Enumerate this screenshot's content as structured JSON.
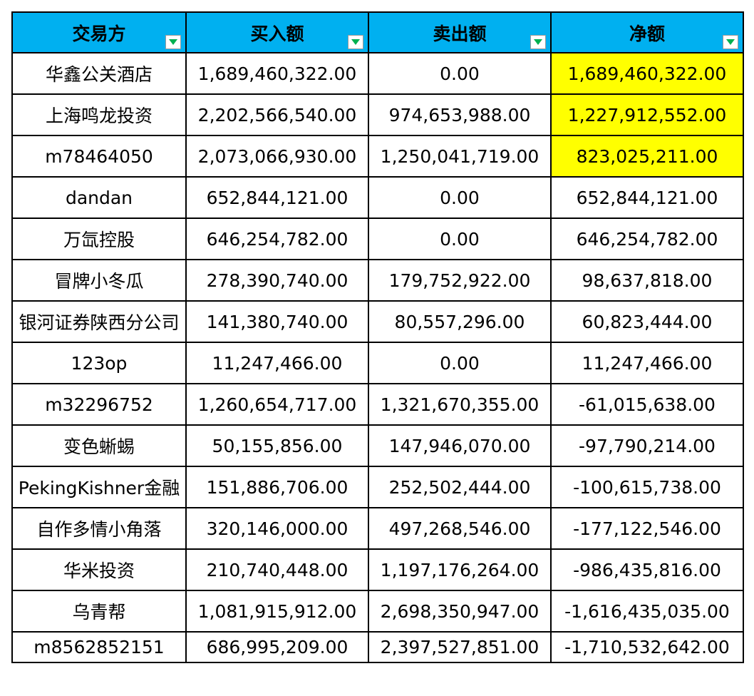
{
  "header": [
    "交易方",
    "买入额",
    "卖出额",
    "净额"
  ],
  "rows": [
    [
      "华鑫公关酒店",
      "1,689,460,322.00",
      "0.00",
      "1,689,460,322.00"
    ],
    [
      "上海鸣龙投资",
      "2,202,566,540.00",
      "974,653,988.00",
      "1,227,912,552.00"
    ],
    [
      "m78464050",
      "2,073,066,930.00",
      "1,250,041,719.00",
      "823,025,211.00"
    ],
    [
      "dandan",
      "652,844,121.00",
      "0.00",
      "652,844,121.00"
    ],
    [
      "万氙控股",
      "646,254,782.00",
      "0.00",
      "646,254,782.00"
    ],
    [
      "冒牌小冬瓜",
      "278,390,740.00",
      "179,752,922.00",
      "98,637,818.00"
    ],
    [
      "银河证券陕西分公司",
      "141,380,740.00",
      "80,557,296.00",
      "60,823,444.00"
    ],
    [
      "123op",
      "11,247,466.00",
      "0.00",
      "11,247,466.00"
    ],
    [
      "m32296752",
      "1,260,654,717.00",
      "1,321,670,355.00",
      "-61,015,638.00"
    ],
    [
      "变色蜥蜴",
      "50,155,856.00",
      "147,946,070.00",
      "-97,790,214.00"
    ],
    [
      "PekingKishner金融",
      "151,886,706.00",
      "252,502,444.00",
      "-100,615,738.00"
    ],
    [
      "自作多情小角落",
      "320,146,000.00",
      "497,268,546.00",
      "-177,122,546.00"
    ],
    [
      "华米投资",
      "210,740,448.00",
      "1,197,176,264.00",
      "-986,435,816.00"
    ],
    [
      "乌青帮",
      "1,081,915,912.00",
      "2,698,350,947.00",
      "-1,616,435,035.00"
    ],
    [
      "m8562852151",
      "686,995,209.00",
      "2,397,527,851.00",
      "-1,710,532,642.00"
    ]
  ],
  "colors": {
    "header_bg": "#00B0F0",
    "highlight": "#FFFF00",
    "filter_arrow": "#00B050"
  },
  "highlighted_net_rows": [
    0,
    1,
    2
  ],
  "icons": {
    "filter": "filter-dropdown-icon"
  }
}
